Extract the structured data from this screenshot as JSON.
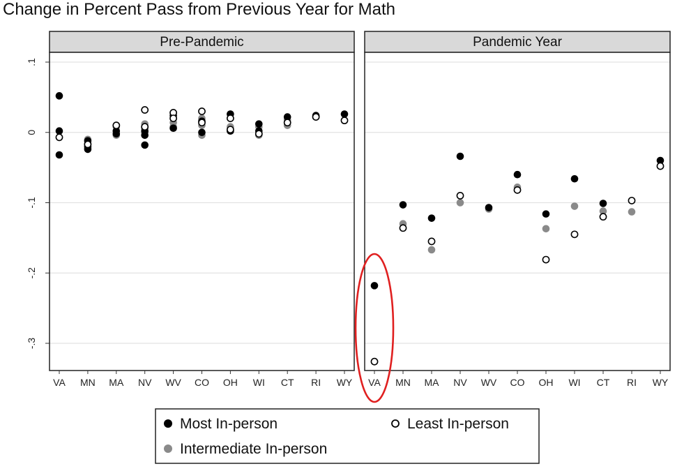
{
  "chart_data": {
    "type": "scatter",
    "title": "Change in Percent Pass from Previous Year for Math",
    "xlabel": "",
    "ylabel": "",
    "ylim": [
      -0.34,
      0.1
    ],
    "yticks": [
      ".1",
      "0",
      "-.1",
      "-.2",
      "-.3"
    ],
    "ytick_values": [
      0.1,
      0,
      -0.1,
      -0.2,
      -0.3
    ],
    "categories": [
      "VA",
      "MN",
      "MA",
      "NV",
      "WV",
      "CO",
      "OH",
      "WI",
      "CT",
      "RI",
      "WY"
    ],
    "grid": true,
    "legend_position": "bottom",
    "series_styles": {
      "most": {
        "color": "#000000",
        "fill": "solid"
      },
      "intermediate": {
        "color": "#8a8a8a",
        "fill": "solid"
      },
      "least": {
        "color": "#000000",
        "fill": "hollow"
      }
    },
    "legend": [
      {
        "key": "most",
        "label": "Most In-person"
      },
      {
        "key": "least",
        "label": "Least In-person"
      },
      {
        "key": "intermediate",
        "label": "Intermediate In-person"
      }
    ],
    "panels": [
      {
        "title": "Pre-Pandemic",
        "points": {
          "most": {
            "VA": [
              0.052,
              0.002,
              -0.032
            ],
            "MN": [
              -0.012,
              -0.02,
              -0.024
            ],
            "MA": [
              0.002,
              -0.002
            ],
            "NV": [
              0.002,
              -0.004,
              -0.018
            ],
            "WV": [
              0.024,
              0.006
            ],
            "CO": [
              0.016,
              0.0
            ],
            "OH": [
              0.026,
              0.002
            ],
            "WI": [
              0.012,
              0.002
            ],
            "CT": [
              0.022
            ],
            "RI": [
              0.024
            ],
            "WY": [
              0.026
            ]
          },
          "intermediate": {
            "VA": [],
            "MN": [
              -0.01,
              -0.016,
              -0.022
            ],
            "MA": [
              0.008,
              -0.004
            ],
            "NV": [
              0.012,
              0.006,
              0.0
            ],
            "WV": [
              0.028,
              0.014,
              0.008
            ],
            "CO": [
              0.02,
              0.01,
              -0.004
            ],
            "OH": [
              0.026,
              0.008,
              0.002
            ],
            "WI": [
              0.008,
              -0.004
            ],
            "CT": [
              0.018,
              0.01
            ],
            "RI": [
              0.022
            ],
            "WY": []
          },
          "least": {
            "VA": [
              -0.007
            ],
            "MN": [
              -0.017
            ],
            "MA": [
              0.01
            ],
            "NV": [
              0.032,
              0.008
            ],
            "WV": [
              0.028,
              0.02
            ],
            "CO": [
              0.03,
              0.014
            ],
            "OH": [
              0.02,
              0.004
            ],
            "WI": [
              -0.002
            ],
            "CT": [
              0.014
            ],
            "RI": [
              0.022
            ],
            "WY": [
              0.017
            ]
          }
        }
      },
      {
        "title": "Pandemic Year",
        "points": {
          "most": {
            "VA": [
              -0.218
            ],
            "MN": [
              -0.103
            ],
            "MA": [
              -0.122
            ],
            "NV": [
              -0.034
            ],
            "WV": [
              -0.107
            ],
            "CO": [
              -0.06
            ],
            "OH": [
              -0.116
            ],
            "WI": [
              -0.066
            ],
            "CT": [
              -0.101
            ],
            "RI": [],
            "WY": [
              -0.04
            ]
          },
          "intermediate": {
            "VA": [],
            "MN": [
              -0.13
            ],
            "MA": [
              -0.167
            ],
            "NV": [
              -0.1
            ],
            "WV": [
              -0.109
            ],
            "CO": [
              -0.078
            ],
            "OH": [
              -0.137
            ],
            "WI": [
              -0.105
            ],
            "CT": [
              -0.112
            ],
            "RI": [
              -0.113
            ],
            "WY": []
          },
          "least": {
            "VA": [
              -0.326
            ],
            "MN": [
              -0.136
            ],
            "MA": [
              -0.155
            ],
            "NV": [
              -0.09
            ],
            "WV": [],
            "CO": [
              -0.082
            ],
            "OH": [
              -0.181
            ],
            "WI": [
              -0.145
            ],
            "CT": [
              -0.12
            ],
            "RI": [
              -0.097
            ],
            "WY": [
              -0.048
            ]
          }
        }
      }
    ],
    "annotation": {
      "type": "ellipse",
      "panel": 1,
      "category": "VA",
      "color": "#e02020"
    }
  }
}
